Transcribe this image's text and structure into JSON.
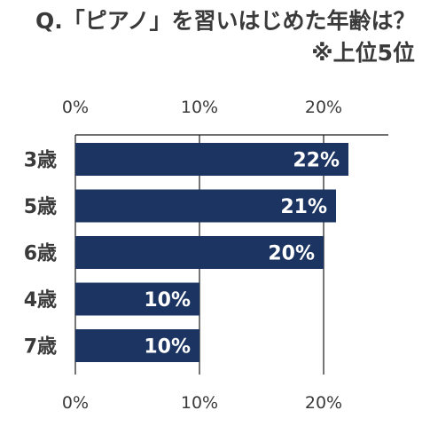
{
  "chart_data": {
    "type": "bar",
    "orientation": "horizontal",
    "title": "Q.「ピアノ」を習いはじめた年齢は？",
    "subtitle": "※上位5位",
    "categories": [
      "3歳",
      "5歳",
      "6歳",
      "4歳",
      "7歳"
    ],
    "values": [
      22,
      21,
      20,
      10,
      10
    ],
    "value_labels": [
      "22%",
      "21%",
      "20%",
      "10%",
      "10%"
    ],
    "xlim": [
      0,
      25
    ],
    "x_ticks": [
      0,
      10,
      20
    ],
    "x_tick_labels": [
      "0%",
      "10%",
      "20%"
    ],
    "x_axis_position": "top and bottom",
    "grid": true,
    "legend": "none",
    "bar_color": "#1c3461",
    "label_color": "#ffffff",
    "text_color": "#3a3a3a",
    "grid_color": "#1a1a1a"
  }
}
